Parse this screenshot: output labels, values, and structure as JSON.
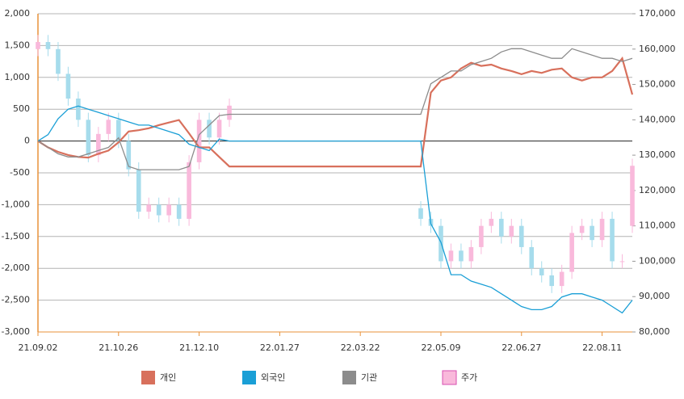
{
  "chart_data": {
    "type": "line",
    "categories": [
      "21.09.02",
      null,
      null,
      null,
      null,
      null,
      null,
      null,
      "21.10.26",
      null,
      null,
      null,
      null,
      null,
      null,
      null,
      "21.12.10",
      null,
      null,
      null,
      null,
      null,
      null,
      null,
      "22.01.27",
      null,
      null,
      null,
      null,
      null,
      null,
      null,
      "22.03.22",
      null,
      null,
      null,
      null,
      null,
      null,
      null,
      "22.05.09",
      null,
      null,
      null,
      null,
      null,
      null,
      null,
      "22.06.27",
      null,
      null,
      null,
      null,
      null,
      null,
      null,
      "22.08.11",
      null,
      null,
      null
    ],
    "ylim": [
      -3000,
      2000
    ],
    "yticks": [
      {
        "value": -3000,
        "label": "-3,000"
      },
      {
        "value": -2500,
        "label": "-2,500"
      },
      {
        "value": -2000,
        "label": "-2,000"
      },
      {
        "value": -1500,
        "label": "-1,500"
      },
      {
        "value": -1000,
        "label": "-1,000"
      },
      -500,
      0,
      500,
      {
        "value": 1000,
        "label": "1,000"
      },
      {
        "value": 1500,
        "label": "1,500"
      },
      {
        "value": 2000,
        "label": "2,000"
      }
    ],
    "y2lim": [
      80000,
      170000
    ],
    "y2ticks": [
      {
        "value": 80000,
        "label": "80,000"
      },
      {
        "value": 90000,
        "label": "90,000"
      },
      {
        "value": 100000,
        "label": "100,000"
      },
      {
        "value": 110000,
        "label": "110,000"
      },
      {
        "value": 120000,
        "label": "120,000"
      },
      {
        "value": 130000,
        "label": "130,000"
      },
      {
        "value": 140000,
        "label": "140,000"
      },
      {
        "value": 150000,
        "label": "150,000"
      },
      {
        "value": 160000,
        "label": "160,000"
      },
      {
        "value": 170000,
        "label": "170,000"
      }
    ],
    "grid": true,
    "legend": "bottom",
    "series": [
      {
        "name": "개인",
        "color": "#d8705c",
        "axis": "y",
        "values": [
          0,
          -100,
          -170,
          -220,
          -250,
          -260,
          -200,
          -150,
          -20,
          150,
          170,
          200,
          250,
          290,
          330,
          120,
          -100,
          -100,
          -250,
          -400,
          -400,
          -400,
          -400,
          -400,
          -400,
          -400,
          -400,
          -400,
          -400,
          -400,
          -400,
          -400,
          -400,
          -400,
          -400,
          -400,
          -400,
          -400,
          -400,
          760,
          950,
          1000,
          1140,
          1230,
          1180,
          1200,
          1140,
          1100,
          1050,
          1100,
          1070,
          1120,
          1140,
          1000,
          950,
          1000,
          1000,
          1100,
          1300,
          730
        ]
      },
      {
        "name": "외국인",
        "color": "#1a9fd6",
        "axis": "y",
        "values": [
          0,
          100,
          350,
          500,
          550,
          500,
          450,
          400,
          350,
          300,
          250,
          250,
          200,
          150,
          100,
          -50,
          -100,
          -150,
          30,
          0,
          0,
          0,
          0,
          0,
          0,
          0,
          0,
          0,
          0,
          0,
          0,
          0,
          0,
          0,
          0,
          0,
          0,
          0,
          0,
          -1300,
          -1590,
          -2100,
          -2100,
          -2200,
          -2250,
          -2300,
          -2400,
          -2500,
          -2600,
          -2650,
          -2650,
          -2600,
          -2450,
          -2400,
          -2400,
          -2450,
          -2500,
          -2600,
          -2700,
          -2500
        ]
      },
      {
        "name": "기관",
        "color": "#8c8c8c",
        "axis": "y",
        "values": [
          0,
          -100,
          -200,
          -250,
          -250,
          -200,
          -150,
          -100,
          50,
          -400,
          -450,
          -450,
          -450,
          -450,
          -450,
          -400,
          100,
          250,
          400,
          420,
          420,
          420,
          420,
          420,
          420,
          420,
          420,
          420,
          420,
          420,
          420,
          420,
          420,
          420,
          420,
          420,
          420,
          420,
          420,
          900,
          1000,
          1100,
          1100,
          1200,
          1250,
          1300,
          1400,
          1450,
          1450,
          1400,
          1350,
          1300,
          1300,
          1450,
          1400,
          1350,
          1300,
          1300,
          1250,
          1300
        ]
      },
      {
        "name": "주가",
        "type": "candlestick",
        "color": "#f9b9db",
        "edge_color": "#d84fb0",
        "down_color": "#a6dcec",
        "axis": "y2",
        "open": [
          160000,
          162000,
          160000,
          153000,
          146000,
          140000,
          130000,
          136000,
          140000,
          134000,
          126000,
          114000,
          116000,
          113000,
          116000,
          112000,
          128000,
          140000,
          135000,
          140000,
          null,
          null,
          null,
          null,
          null,
          null,
          null,
          null,
          null,
          null,
          null,
          null,
          null,
          null,
          null,
          null,
          null,
          null,
          115000,
          112000,
          110000,
          100000,
          103000,
          100000,
          104000,
          110000,
          112000,
          107000,
          110000,
          104000,
          98000,
          96000,
          93000,
          97000,
          108000,
          110000,
          106000,
          112000,
          100000,
          110000
        ],
        "high": [
          164000,
          164000,
          162000,
          155000,
          148000,
          142000,
          138000,
          142000,
          142000,
          136000,
          128000,
          118000,
          118000,
          118000,
          118000,
          130000,
          142000,
          142000,
          142000,
          146000,
          null,
          null,
          null,
          null,
          null,
          null,
          null,
          null,
          null,
          null,
          null,
          null,
          null,
          null,
          null,
          null,
          null,
          null,
          117000,
          114000,
          112000,
          105000,
          105000,
          106000,
          112000,
          114000,
          114000,
          112000,
          112000,
          106000,
          100000,
          98000,
          99000,
          110000,
          112000,
          112000,
          114000,
          114000,
          102000,
          129000
        ],
        "low": [
          158000,
          158000,
          151000,
          144000,
          138000,
          128000,
          128000,
          134000,
          132000,
          124000,
          112000,
          112000,
          111000,
          111000,
          110000,
          110000,
          126000,
          133000,
          133000,
          138000,
          null,
          null,
          null,
          null,
          null,
          null,
          null,
          null,
          null,
          null,
          null,
          null,
          null,
          null,
          null,
          null,
          null,
          null,
          110000,
          108000,
          98000,
          98000,
          98000,
          98000,
          102000,
          108000,
          105000,
          105000,
          102000,
          96000,
          94000,
          91000,
          91000,
          95000,
          106000,
          104000,
          104000,
          98000,
          98000,
          108000
        ],
        "close": [
          162000,
          160000,
          153000,
          146000,
          140000,
          130000,
          136000,
          140000,
          134000,
          126000,
          114000,
          116000,
          113000,
          116000,
          112000,
          128000,
          140000,
          135000,
          140000,
          144000,
          null,
          null,
          null,
          null,
          null,
          null,
          null,
          null,
          null,
          null,
          null,
          null,
          null,
          null,
          null,
          null,
          null,
          null,
          112000,
          110000,
          100000,
          103000,
          100000,
          104000,
          110000,
          112000,
          107000,
          110000,
          104000,
          98000,
          96000,
          93000,
          97000,
          108000,
          110000,
          106000,
          112000,
          100000,
          100000,
          127000
        ]
      }
    ]
  }
}
